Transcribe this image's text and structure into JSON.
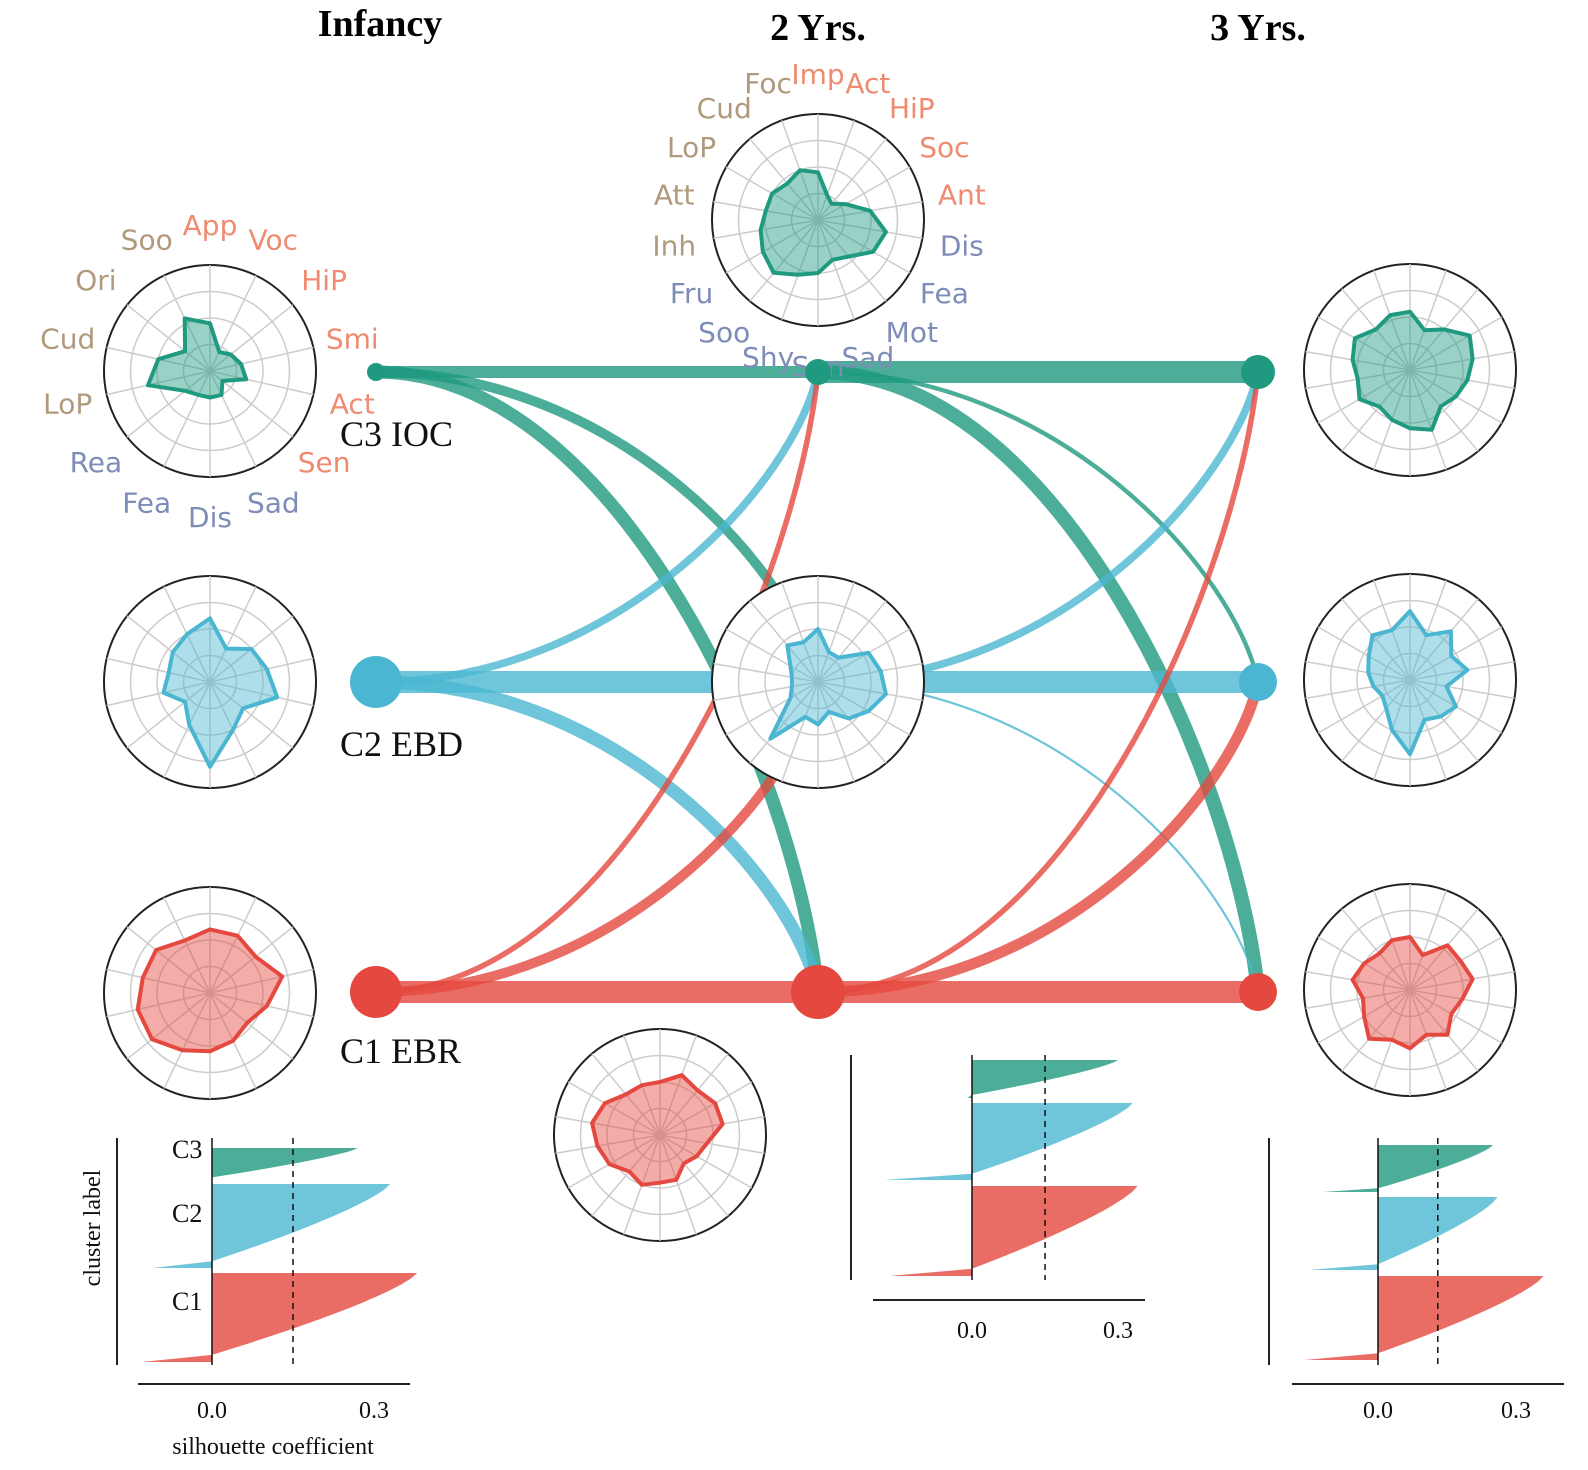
{
  "colors": {
    "C3": "#1f9a80",
    "C2": "#4bb6d1",
    "C1": "#e5483e",
    "approach": "#ee8b70",
    "control": "#b09a7d",
    "negative": "#7d8db8"
  },
  "columns": [
    {
      "id": "infancy",
      "title": "Infancy"
    },
    {
      "id": "y2",
      "title": "2 Yrs."
    },
    {
      "id": "y3",
      "title": "3 Yrs."
    }
  ],
  "clusters": [
    {
      "id": "C3",
      "label": "C3 IOC"
    },
    {
      "id": "C2",
      "label": "C2 EBD"
    },
    {
      "id": "C1",
      "label": "C1 EBR"
    }
  ],
  "node_sizes": {
    "infancy": {
      "C3": 0.35,
      "C2": 1.0,
      "C1": 1.0
    },
    "y2": {
      "C3": 0.5,
      "C2": 0.0,
      "C1": 1.0
    },
    "y3": {
      "C3": 0.65,
      "C2": 0.7,
      "C1": 0.75
    }
  },
  "transitions": [
    {
      "from": "infancy",
      "to": "y2",
      "from_c": "C3",
      "to_c": "C3",
      "weight": 0.55
    },
    {
      "from": "infancy",
      "to": "y2",
      "from_c": "C3",
      "to_c": "C2",
      "weight": 0.45
    },
    {
      "from": "infancy",
      "to": "y2",
      "from_c": "C3",
      "to_c": "C1",
      "weight": 0.6
    },
    {
      "from": "infancy",
      "to": "y2",
      "from_c": "C2",
      "to_c": "C3",
      "weight": 0.35
    },
    {
      "from": "infancy",
      "to": "y2",
      "from_c": "C2",
      "to_c": "C2",
      "weight": 1.0
    },
    {
      "from": "infancy",
      "to": "y2",
      "from_c": "C2",
      "to_c": "C1",
      "weight": 0.6
    },
    {
      "from": "infancy",
      "to": "y2",
      "from_c": "C1",
      "to_c": "C3",
      "weight": 0.25
    },
    {
      "from": "infancy",
      "to": "y2",
      "from_c": "C1",
      "to_c": "C2",
      "weight": 0.45
    },
    {
      "from": "infancy",
      "to": "y2",
      "from_c": "C1",
      "to_c": "C1",
      "weight": 1.0
    },
    {
      "from": "y2",
      "to": "y3",
      "from_c": "C3",
      "to_c": "C3",
      "weight": 1.0
    },
    {
      "from": "y2",
      "to": "y3",
      "from_c": "C3",
      "to_c": "C2",
      "weight": 0.2
    },
    {
      "from": "y2",
      "to": "y3",
      "from_c": "C3",
      "to_c": "C1",
      "weight": 0.65
    },
    {
      "from": "y2",
      "to": "y3",
      "from_c": "C2",
      "to_c": "C3",
      "weight": 0.35
    },
    {
      "from": "y2",
      "to": "y3",
      "from_c": "C2",
      "to_c": "C2",
      "weight": 1.0
    },
    {
      "from": "y2",
      "to": "y3",
      "from_c": "C2",
      "to_c": "C1",
      "weight": 0.1
    },
    {
      "from": "y2",
      "to": "y3",
      "from_c": "C1",
      "to_c": "C3",
      "weight": 0.25
    },
    {
      "from": "y2",
      "to": "y3",
      "from_c": "C1",
      "to_c": "C2",
      "weight": 0.5
    },
    {
      "from": "y2",
      "to": "y3",
      "from_c": "C1",
      "to_c": "C1",
      "weight": 1.0
    }
  ],
  "radar_labels": {
    "infancy": [
      {
        "text": "App",
        "group": "approach"
      },
      {
        "text": "Voc",
        "group": "approach"
      },
      {
        "text": "HiP",
        "group": "approach"
      },
      {
        "text": "Smi",
        "group": "approach"
      },
      {
        "text": "Act",
        "group": "approach"
      },
      {
        "text": "Sen",
        "group": "approach"
      },
      {
        "text": "Sad",
        "group": "negative"
      },
      {
        "text": "Dis",
        "group": "negative"
      },
      {
        "text": "Fea",
        "group": "negative"
      },
      {
        "text": "Rea",
        "group": "negative"
      },
      {
        "text": "LoP",
        "group": "control"
      },
      {
        "text": "Cud",
        "group": "control"
      },
      {
        "text": "Ori",
        "group": "control"
      },
      {
        "text": "Soo",
        "group": "control"
      }
    ],
    "y2": [
      {
        "text": "Imp",
        "group": "approach"
      },
      {
        "text": "Act",
        "group": "approach"
      },
      {
        "text": "HiP",
        "group": "approach"
      },
      {
        "text": "Soc",
        "group": "approach"
      },
      {
        "text": "Ant",
        "group": "approach"
      },
      {
        "text": "Dis",
        "group": "negative"
      },
      {
        "text": "Fea",
        "group": "negative"
      },
      {
        "text": "Mot",
        "group": "negative"
      },
      {
        "text": "Sad",
        "group": "negative"
      },
      {
        "text": "Sen",
        "group": "negative"
      },
      {
        "text": "Shy",
        "group": "negative"
      },
      {
        "text": "Soo",
        "group": "negative"
      },
      {
        "text": "Fru",
        "group": "negative"
      },
      {
        "text": "Inh",
        "group": "control"
      },
      {
        "text": "Att",
        "group": "control"
      },
      {
        "text": "LoP",
        "group": "control"
      },
      {
        "text": "Cud",
        "group": "control"
      },
      {
        "text": "Foc",
        "group": "control"
      }
    ]
  },
  "radar_profiles": {
    "infancy": {
      "C3": [
        0.45,
        0.2,
        0.25,
        0.3,
        0.35,
        0.15,
        0.25,
        0.25,
        0.25,
        0.3,
        0.6,
        0.5,
        0.3,
        0.55
      ],
      "C2": [
        0.6,
        0.35,
        0.5,
        0.55,
        0.65,
        0.4,
        0.5,
        0.8,
        0.45,
        0.3,
        0.45,
        0.4,
        0.45,
        0.5
      ],
      "C1": [
        0.6,
        0.6,
        0.55,
        0.7,
        0.55,
        0.45,
        0.5,
        0.55,
        0.6,
        0.7,
        0.7,
        0.65,
        0.65,
        0.55
      ]
    },
    "y2": {
      "C3": [
        0.45,
        0.25,
        0.2,
        0.3,
        0.5,
        0.65,
        0.6,
        0.45,
        0.4,
        0.5,
        0.55,
        0.65,
        0.6,
        0.55,
        0.5,
        0.5,
        0.45,
        0.5
      ],
      "C2": [
        0.5,
        0.3,
        0.3,
        0.55,
        0.6,
        0.65,
        0.55,
        0.45,
        0.3,
        0.4,
        0.35,
        0.7,
        0.3,
        0.25,
        0.25,
        0.3,
        0.45,
        0.4
      ],
      "C1": [
        0.5,
        0.6,
        0.55,
        0.6,
        0.6,
        0.45,
        0.4,
        0.35,
        0.45,
        0.45,
        0.5,
        0.45,
        0.55,
        0.6,
        0.65,
        0.6,
        0.5,
        0.5
      ]
    },
    "y3": {
      "C3": [
        0.55,
        0.4,
        0.5,
        0.65,
        0.6,
        0.55,
        0.5,
        0.45,
        0.6,
        0.55,
        0.5,
        0.45,
        0.55,
        0.5,
        0.55,
        0.6,
        0.5,
        0.55
      ],
      "C2": [
        0.65,
        0.45,
        0.6,
        0.45,
        0.55,
        0.35,
        0.5,
        0.45,
        0.4,
        0.7,
        0.5,
        0.35,
        0.3,
        0.35,
        0.4,
        0.45,
        0.55,
        0.5
      ],
      "C1": [
        0.5,
        0.35,
        0.55,
        0.55,
        0.6,
        0.5,
        0.45,
        0.55,
        0.45,
        0.55,
        0.5,
        0.6,
        0.5,
        0.45,
        0.55,
        0.5,
        0.45,
        0.5
      ]
    }
  },
  "silhouette": {
    "xlabel": "silhouette coefficient",
    "ylabel": "cluster label",
    "xticks": [
      "0.0",
      "0.3"
    ],
    "row_labels": [
      "C3",
      "C2",
      "C1"
    ],
    "mean": {
      "infancy": 0.15,
      "y2": 0.15,
      "y3": 0.13
    },
    "max": {
      "infancy": {
        "C3": 0.27,
        "C2": 0.33,
        "C1": 0.38
      },
      "y2": {
        "C3": 0.3,
        "C2": 0.33,
        "C1": 0.34
      },
      "y3": {
        "C3": 0.25,
        "C2": 0.26,
        "C1": 0.36
      }
    },
    "min": {
      "infancy": {
        "C3": 0.0,
        "C2": -0.11,
        "C1": -0.13
      },
      "y2": {
        "C3": -0.01,
        "C2": -0.18,
        "C1": -0.17
      },
      "y3": {
        "C3": -0.12,
        "C2": -0.15,
        "C1": -0.16
      }
    },
    "xlim": [
      -0.15,
      0.4
    ]
  }
}
